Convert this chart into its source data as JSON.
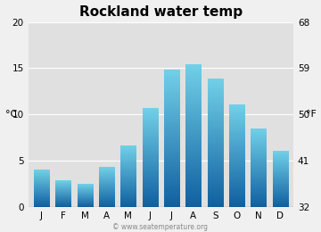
{
  "title": "Rockland water temp",
  "months": [
    "J",
    "F",
    "M",
    "A",
    "M",
    "J",
    "J",
    "A",
    "S",
    "O",
    "N",
    "D"
  ],
  "values_c": [
    4.0,
    2.8,
    2.5,
    4.3,
    6.6,
    10.7,
    14.8,
    15.4,
    13.8,
    11.0,
    8.4,
    6.0
  ],
  "ylabel_left": "°C",
  "ylabel_right": "°F",
  "ylim_c": [
    0,
    20
  ],
  "yticks_c": [
    0,
    5,
    10,
    15,
    20
  ],
  "yticks_f": [
    32,
    41,
    50,
    59,
    68
  ],
  "plot_bg_color": "#e0e0e0",
  "fig_bg_color": "#f0f0f0",
  "bar_color_top": "#72d0e8",
  "bar_color_bottom": "#1060a0",
  "watermark": "© www.seatemperature.org",
  "title_fontsize": 11,
  "axis_fontsize": 8,
  "tick_fontsize": 7.5
}
